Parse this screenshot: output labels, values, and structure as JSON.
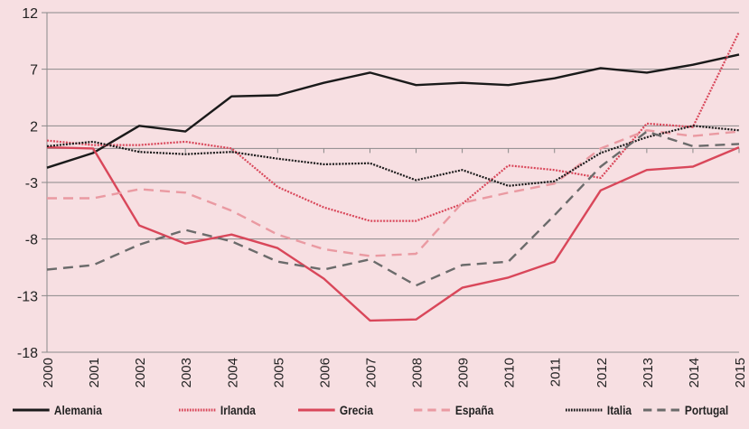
{
  "chart_data": {
    "type": "line",
    "title": "",
    "xlabel": "",
    "ylabel": "",
    "x": [
      "2000",
      "2001",
      "2002",
      "2003",
      "2004",
      "2005",
      "2006",
      "2007",
      "2008",
      "2009",
      "2010",
      "2011",
      "2012",
      "2013",
      "2014",
      "2015"
    ],
    "ylim": [
      -18,
      12
    ],
    "yticks": [
      12,
      7,
      2,
      -3,
      -8,
      -13,
      -18
    ],
    "grid": true,
    "legend_position": "bottom",
    "series": [
      {
        "name": "Alemania",
        "color": "#1a1a1a",
        "style": "solid",
        "values": [
          -1.7,
          -0.4,
          2.0,
          1.5,
          4.6,
          4.7,
          5.8,
          6.7,
          5.6,
          5.8,
          5.6,
          6.2,
          7.1,
          6.7,
          7.4,
          8.3
        ]
      },
      {
        "name": "Irlanda",
        "color": "#d9475a",
        "style": "dotted",
        "values": [
          0.7,
          0.3,
          0.3,
          0.6,
          0.0,
          -3.4,
          -5.2,
          -6.4,
          -6.4,
          -4.9,
          -1.5,
          -1.9,
          -2.6,
          2.2,
          1.9,
          10.3
        ]
      },
      {
        "name": "Grecia",
        "color": "#d9475a",
        "style": "solid",
        "values": [
          0.1,
          0.0,
          -6.8,
          -8.4,
          -7.6,
          -8.8,
          -11.5,
          -15.2,
          -15.1,
          -12.3,
          -11.4,
          -10.0,
          -3.7,
          -1.9,
          -1.6,
          0.1
        ]
      },
      {
        "name": "España",
        "color": "#ea9aa2",
        "style": "dashed",
        "values": [
          -4.4,
          -4.4,
          -3.6,
          -3.9,
          -5.5,
          -7.6,
          -8.9,
          -9.5,
          -9.3,
          -4.8,
          -3.9,
          -3.1,
          0.0,
          1.6,
          1.1,
          1.5
        ]
      },
      {
        "name": "Italia",
        "color": "#1a1a1a",
        "style": "dotted",
        "values": [
          0.2,
          0.6,
          -0.3,
          -0.5,
          -0.3,
          -0.9,
          -1.4,
          -1.3,
          -2.8,
          -1.9,
          -3.3,
          -2.9,
          -0.4,
          1.0,
          2.0,
          1.6
        ]
      },
      {
        "name": "Portugal",
        "color": "#6b6b6b",
        "style": "dashed",
        "values": [
          -10.7,
          -10.3,
          -8.5,
          -7.2,
          -8.2,
          -10.0,
          -10.7,
          -9.8,
          -12.1,
          -10.3,
          -10.0,
          -5.9,
          -1.6,
          1.5,
          0.2,
          0.4
        ]
      }
    ]
  }
}
